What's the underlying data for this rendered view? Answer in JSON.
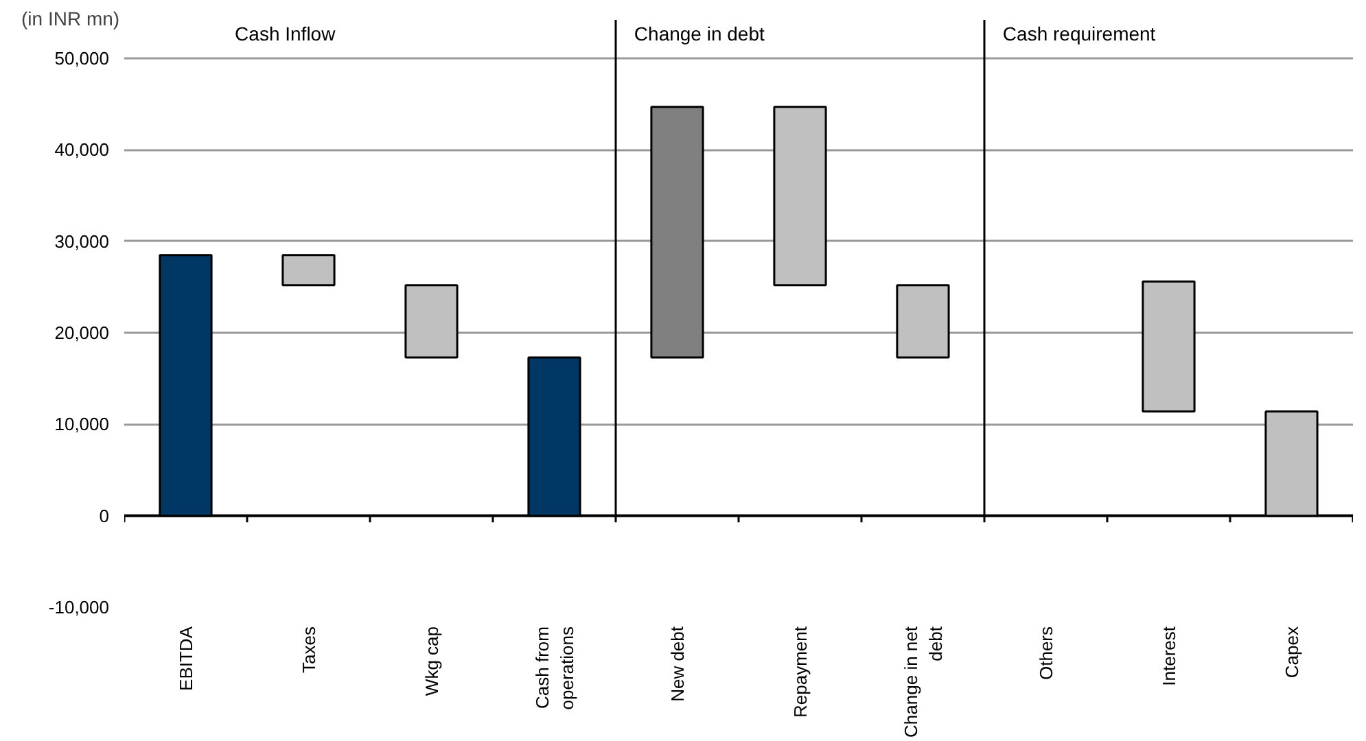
{
  "chart_data": {
    "type": "bar",
    "ylabel": "(in INR mn)",
    "categories": [
      "EBITDA",
      "Taxes",
      "Wkg cap",
      "Cash from operations",
      "New debt",
      "Repayment",
      "Change in net debt",
      "Others",
      "Interest",
      "Capex"
    ],
    "values": [
      28500,
      3300,
      7900,
      17300,
      27400,
      19500,
      7900,
      null,
      14200,
      11400
    ],
    "base": [
      0,
      25200,
      17300,
      0,
      17300,
      25200,
      17300,
      null,
      11400,
      0
    ],
    "colors": [
      "#003764",
      "#c0c0c0",
      "#c0c0c0",
      "#003764",
      "#808080",
      "#c0c0c0",
      "#c0c0c0",
      "#c0c0c0",
      "#c0c0c0",
      "#c0c0c0"
    ],
    "ylim": [
      -10000,
      50000
    ],
    "yticks": [
      {
        "value": -10000,
        "label": "-10,000"
      },
      {
        "value": 0,
        "label": "0"
      },
      {
        "value": 10000,
        "label": "10,000"
      },
      {
        "value": 20000,
        "label": "20,000"
      },
      {
        "value": 30000,
        "label": "30,000"
      },
      {
        "value": 40000,
        "label": "40,000"
      },
      {
        "value": 50000,
        "label": "50,000"
      }
    ],
    "grid": "y",
    "annotations": [
      "Cash Inflow",
      "Change in debt",
      "Cash requirement"
    ]
  }
}
